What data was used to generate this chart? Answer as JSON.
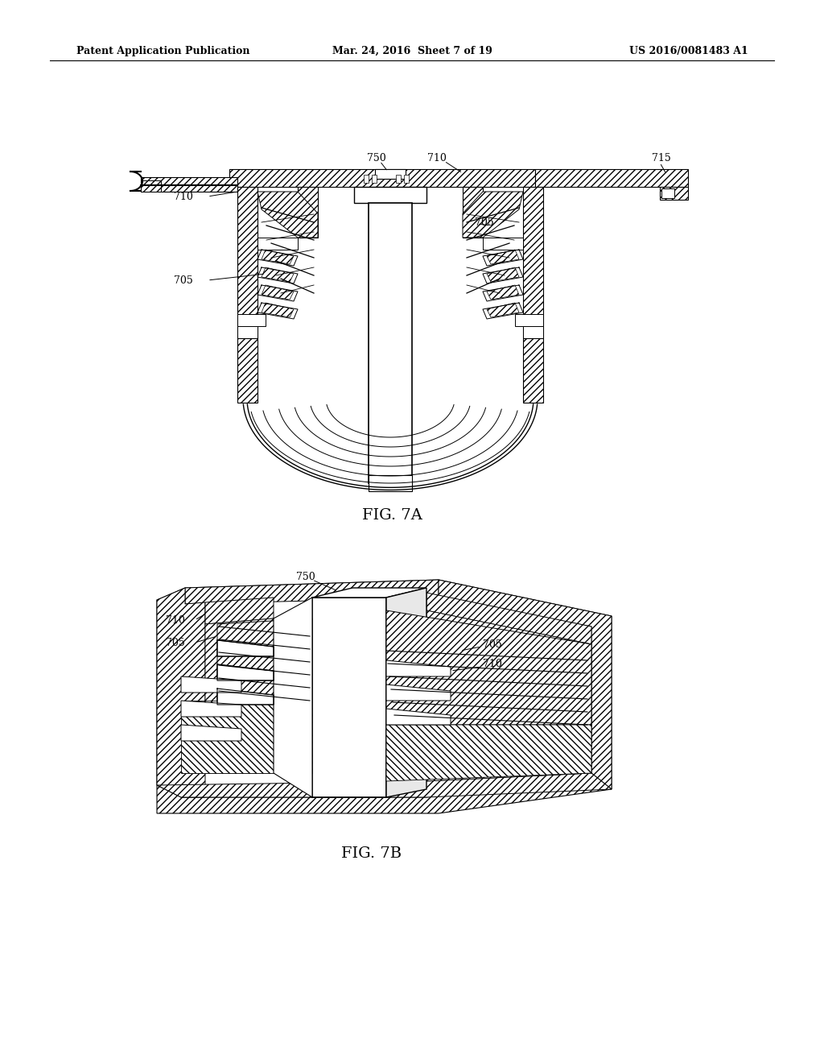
{
  "bg_color": "#ffffff",
  "header_left": "Patent Application Publication",
  "header_mid": "Mar. 24, 2016  Sheet 7 of 19",
  "header_right": "US 2016/0081483 A1",
  "fig7a_label": "FIG. 7A",
  "fig7b_label": "FIG. 7B",
  "line_color": "#000000",
  "text_color": "#000000",
  "label_fontsize": 9,
  "caption_fontsize": 14,
  "header_fontsize": 9
}
